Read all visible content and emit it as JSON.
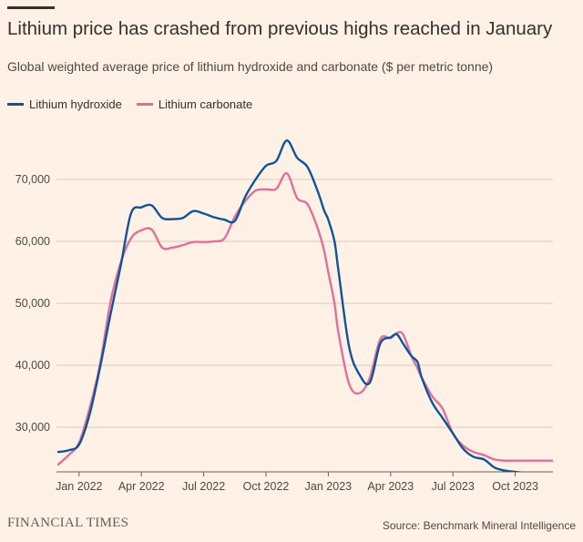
{
  "title": "Lithium price has crashed from previous highs reached in January",
  "subtitle": "Global weighted average price of lithium hydroxide and carbonate ($ per metric tonne)",
  "source": "Source: Benchmark Mineral Intelligence",
  "brand": "FINANCIAL TIMES",
  "chart_data": {
    "type": "line",
    "title": "Lithium price has crashed from previous highs reached in January",
    "xlabel": "",
    "ylabel": "$ per metric tonne",
    "x_tick_labels": [
      "Jan 2022",
      "Apr 2022",
      "Jul 2022",
      "Oct 2022",
      "Jan 2023",
      "Apr 2023",
      "Jul 2023",
      "Oct 2023"
    ],
    "x_tick_months": [
      1,
      4,
      7,
      10,
      13,
      16,
      19,
      22
    ],
    "y_ticks": [
      30000,
      40000,
      50000,
      60000,
      70000
    ],
    "y_tick_labels": [
      "30,000",
      "40,000",
      "50,000",
      "60,000",
      "70,000"
    ],
    "xlim": [
      0,
      24
    ],
    "ylim": [
      23000,
      80000
    ],
    "legend_position": "top-left",
    "series": [
      {
        "name": "Lithium hydroxide",
        "color": "#0f5499",
        "x": [
          0,
          0.5,
          1,
          1.5,
          2,
          2.5,
          3,
          3.5,
          4,
          4.5,
          5,
          5.5,
          6,
          6.5,
          7,
          7.5,
          8,
          8.5,
          9,
          9.5,
          10,
          10.5,
          11,
          11.5,
          12,
          12.5,
          12.8,
          13,
          13.3,
          13.5,
          14,
          14.5,
          15,
          15.5,
          16,
          16.3,
          16.6,
          17,
          17.3,
          17.5,
          18,
          18.5,
          19,
          19.5,
          20,
          20.5,
          21,
          21.5,
          22,
          22.5,
          23,
          23.5,
          24
        ],
        "y": [
          26000,
          26300,
          27200,
          32000,
          39500,
          48000,
          56000,
          64500,
          65500,
          65800,
          63800,
          63600,
          63800,
          64900,
          64500,
          63900,
          63500,
          63300,
          67200,
          70000,
          72200,
          73000,
          76300,
          73500,
          72000,
          68000,
          65000,
          63500,
          60000,
          55000,
          43000,
          38500,
          37200,
          43500,
          44500,
          45000,
          43500,
          41500,
          40500,
          38000,
          34000,
          31500,
          29000,
          26500,
          25200,
          24800,
          23500,
          23000,
          22800,
          22600,
          22500,
          22500,
          22500
        ]
      },
      {
        "name": "Lithium carbonate",
        "color": "#e0709b",
        "x": [
          0,
          0.5,
          1,
          1.5,
          2,
          2.5,
          3,
          3.5,
          4,
          4.5,
          5,
          5.5,
          6,
          6.5,
          7,
          7.5,
          8,
          8.5,
          9,
          9.5,
          10,
          10.5,
          11,
          11.5,
          12,
          12.5,
          12.8,
          13,
          13.3,
          13.5,
          14,
          14.5,
          15,
          15.5,
          16,
          16.3,
          16.6,
          17,
          17.3,
          17.5,
          18,
          18.5,
          19,
          19.5,
          20,
          20.5,
          21,
          21.5,
          22,
          22.5,
          23,
          23.5,
          24
        ],
        "y": [
          24000,
          25500,
          27500,
          33000,
          40000,
          50000,
          56500,
          60500,
          61800,
          61900,
          59000,
          59000,
          59400,
          59900,
          59900,
          60000,
          60500,
          64000,
          66500,
          68200,
          68400,
          68500,
          71000,
          67000,
          66000,
          62000,
          58500,
          55000,
          50000,
          45000,
          37000,
          35500,
          38000,
          44200,
          44400,
          45200,
          45000,
          41500,
          39500,
          38000,
          35000,
          33000,
          29000,
          27000,
          26000,
          25500,
          24800,
          24600,
          24600,
          24600,
          24600,
          24600,
          24600
        ]
      }
    ]
  }
}
